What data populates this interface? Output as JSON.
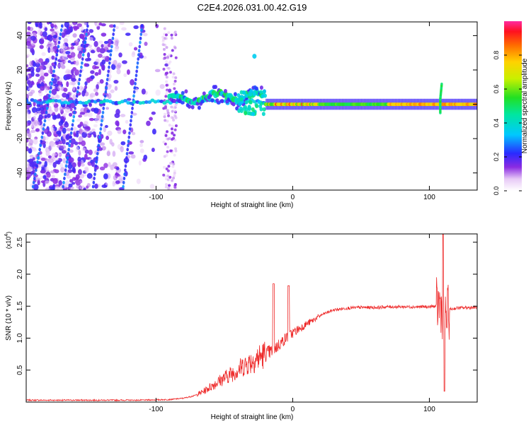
{
  "title": "C2E4.2026.031.00.42.G19",
  "colors": {
    "snr_line": "#ee2a2a",
    "axis": "#000000",
    "background": "#ffffff"
  },
  "chart_data": [
    {
      "type": "heatmap",
      "name": "spectrogram",
      "xlabel": "Height of straight line (km)",
      "ylabel": "Frequency (Hz)",
      "xlim": [
        -195,
        135
      ],
      "ylim": [
        -50,
        48
      ],
      "x_ticks": [
        -100,
        0,
        100
      ],
      "x_tick_labels": [
        "-100",
        "0",
        "100"
      ],
      "y_ticks": [
        -40,
        -20,
        0,
        20,
        40
      ],
      "y_tick_labels": [
        "-40",
        "-20",
        "0",
        "20",
        "40"
      ],
      "colorbar": {
        "label": "Normalized spectral amplitude",
        "range": [
          0,
          1
        ],
        "ticks": [
          0,
          0.2,
          0.4,
          0.6,
          0.8
        ],
        "tick_labels": [
          "0.0",
          "0.2",
          "0.4",
          "0.6",
          "0.8"
        ],
        "colormap": "rainbow"
      },
      "features": [
        {
          "description": "scattered weak noise",
          "x_range": [
            -195,
            -90
          ],
          "y_range": [
            -50,
            48
          ],
          "amplitude": 0.15
        },
        {
          "description": "narrow tone band",
          "x_range": [
            -195,
            -20
          ],
          "y_center": 2,
          "amplitude": 0.3
        },
        {
          "description": "broadened line",
          "x_range": [
            -90,
            -20
          ],
          "y_center": 4,
          "amplitude": 0.5
        },
        {
          "description": "strong carrier",
          "x_range": [
            -20,
            135
          ],
          "y_center": 0,
          "amplitude": 0.9
        },
        {
          "description": "spike",
          "x": 108,
          "y_range": [
            -5,
            12
          ],
          "amplitude": 0.5
        }
      ]
    },
    {
      "type": "line",
      "name": "snr",
      "xlabel": "Height of straight line (km)",
      "ylabel": "SNR (10 * v/v)",
      "y_multiplier": "(x10",
      "y_multiplier_exp": "4",
      "y_multiplier_close": ")",
      "xlim": [
        -195,
        135
      ],
      "ylim": [
        0,
        2.63
      ],
      "x_ticks": [
        -100,
        0,
        100
      ],
      "x_tick_labels": [
        "-100",
        "0",
        "100"
      ],
      "y_ticks": [
        0.5,
        1.0,
        1.5,
        2.0,
        2.5
      ],
      "y_tick_labels": [
        "0.5",
        "1.0",
        "1.5",
        "2.0",
        "2.5"
      ],
      "series": [
        {
          "name": "SNR",
          "x": [
            -195,
            -170,
            -140,
            -110,
            -90,
            -80,
            -72,
            -65,
            -58,
            -50,
            -42,
            -35,
            -28,
            -22,
            -15,
            -10,
            -5,
            0,
            5,
            10,
            15,
            20,
            25,
            30,
            40,
            50,
            60,
            70,
            80,
            90,
            100,
            105,
            108,
            110,
            112,
            115,
            120,
            130,
            135
          ],
          "values": [
            0.03,
            0.03,
            0.03,
            0.03,
            0.04,
            0.06,
            0.1,
            0.17,
            0.27,
            0.38,
            0.48,
            0.58,
            0.66,
            0.73,
            0.8,
            0.9,
            1.0,
            1.08,
            1.15,
            1.22,
            1.28,
            1.35,
            1.4,
            1.44,
            1.47,
            1.48,
            1.48,
            1.49,
            1.49,
            1.49,
            1.49,
            1.5,
            1.52,
            1.4,
            1.3,
            1.45,
            1.47,
            1.48,
            1.48
          ]
        }
      ],
      "annotations": [
        {
          "x": -14,
          "y": 1.85,
          "text": "spike"
        },
        {
          "x": -3,
          "y": 1.82,
          "text": "spike"
        },
        {
          "x": 110,
          "y": 2.62,
          "text": "spike"
        },
        {
          "x": 110,
          "y": 0.17,
          "text": "dip"
        }
      ]
    }
  ]
}
